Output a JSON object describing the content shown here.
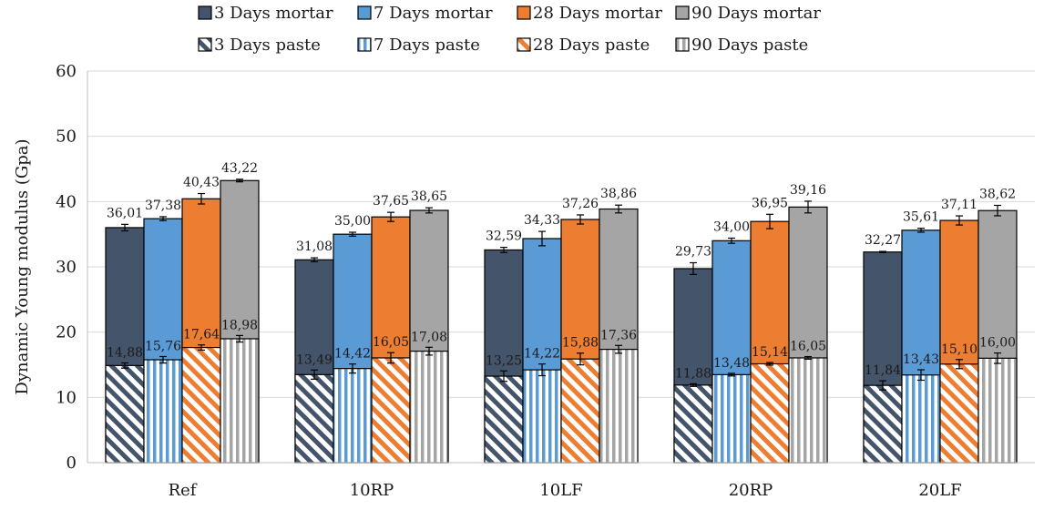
{
  "chart_data": {
    "type": "bar",
    "title": "",
    "xlabel": "",
    "ylabel": "Dynamic Young modulus (Gpa)",
    "ylim": [
      0,
      60
    ],
    "yticks": [
      0,
      10,
      20,
      30,
      40,
      50,
      60
    ],
    "grid": "horizontal",
    "legend_position": "top",
    "categories": [
      "Ref",
      "10RP",
      "10LF",
      "20RP",
      "20LF"
    ],
    "series": [
      {
        "name": "3 Days mortar",
        "group": "mortar",
        "age": "3",
        "values": [
          36.01,
          31.08,
          32.59,
          29.73,
          32.27
        ],
        "labels": [
          "36,01",
          "31,08",
          "32,59",
          "29,73",
          "32,27"
        ],
        "errors": [
          0.5,
          0.3,
          0.4,
          0.9,
          0.1
        ]
      },
      {
        "name": "7 Days mortar",
        "group": "mortar",
        "age": "7",
        "values": [
          37.38,
          35.0,
          34.33,
          34.0,
          35.61
        ],
        "labels": [
          "37,38",
          "35,00",
          "34,33",
          "34,00",
          "35,61"
        ],
        "errors": [
          0.3,
          0.3,
          1.1,
          0.4,
          0.3
        ]
      },
      {
        "name": "28 Days mortar",
        "group": "mortar",
        "age": "28",
        "values": [
          40.43,
          37.65,
          37.26,
          36.95,
          37.11
        ],
        "labels": [
          "40,43",
          "37,65",
          "37,26",
          "36,95",
          "37,11"
        ],
        "errors": [
          0.8,
          0.7,
          0.7,
          1.1,
          0.7
        ]
      },
      {
        "name": "90 Days mortar",
        "group": "mortar",
        "age": "90",
        "values": [
          43.22,
          38.65,
          38.86,
          39.16,
          38.62
        ],
        "labels": [
          "43,22",
          "38,65",
          "38,86",
          "39,16",
          "38,62"
        ],
        "errors": [
          0.2,
          0.4,
          0.6,
          0.9,
          0.8
        ]
      },
      {
        "name": "3 Days paste",
        "group": "paste",
        "age": "3",
        "values": [
          14.88,
          13.49,
          13.25,
          11.88,
          11.84
        ],
        "labels": [
          "14,88",
          "13,49",
          "13,25",
          "11,88",
          "11,84"
        ],
        "errors": [
          0.4,
          0.7,
          0.8,
          0.2,
          0.7
        ]
      },
      {
        "name": "7 Days paste",
        "group": "paste",
        "age": "7",
        "values": [
          15.76,
          14.42,
          14.22,
          13.48,
          13.43
        ],
        "labels": [
          "15,76",
          "14,42",
          "14,22",
          "13,48",
          "13,43"
        ],
        "errors": [
          0.5,
          0.7,
          0.9,
          0.2,
          0.8
        ]
      },
      {
        "name": "28 Days paste",
        "group": "paste",
        "age": "28",
        "values": [
          17.64,
          16.05,
          15.88,
          15.14,
          15.1
        ],
        "labels": [
          "17,64",
          "16,05",
          "15,88",
          "15,14",
          "15,10"
        ],
        "errors": [
          0.4,
          0.8,
          0.9,
          0.2,
          0.7
        ]
      },
      {
        "name": "90 Days paste",
        "group": "paste",
        "age": "90",
        "values": [
          18.98,
          17.08,
          17.36,
          16.05,
          16.0
        ],
        "labels": [
          "18,98",
          "17,08",
          "17,36",
          "16,05",
          "16,00"
        ],
        "errors": [
          0.5,
          0.6,
          0.6,
          0.2,
          0.8
        ]
      }
    ],
    "colors": {
      "3": "#44546a",
      "7": "#5b9bd5",
      "28": "#ed7d31",
      "90": "#a5a5a5"
    },
    "paste_patterns": {
      "3": "diagonal-stripes",
      "7": "vertical-stripes",
      "28": "diagonal-stripes",
      "90": "vertical-stripes"
    }
  }
}
